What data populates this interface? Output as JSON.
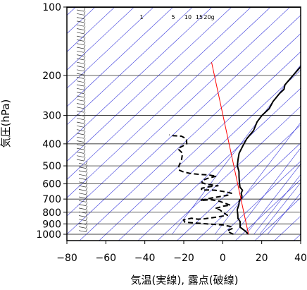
{
  "chart_data": {
    "type": "line",
    "title": "",
    "xlabel": "気温(実線), 露点(破線)",
    "ylabel": "気圧(hPa)",
    "x_axis": {
      "min": -80,
      "max": 40,
      "ticks": [
        -80,
        -60,
        -40,
        -20,
        0,
        20,
        40
      ],
      "tick_labels": [
        "−80",
        "−60",
        "−40",
        "−20",
        "0",
        "20",
        "40"
      ]
    },
    "y_axis": {
      "scale": "log",
      "reversed": true,
      "min": 100,
      "max": 1050,
      "ticks": [
        100,
        200,
        300,
        400,
        500,
        600,
        700,
        800,
        900,
        1000
      ],
      "tick_labels": [
        "100",
        "200",
        "300",
        "400",
        "500",
        "600",
        "700",
        "800",
        "900",
        "1000"
      ]
    },
    "mixing_ratio_labels": [
      "1",
      "5",
      "10",
      "15",
      "20g"
    ],
    "series": [
      {
        "role": "temperature",
        "style": "solid",
        "color": "#000000",
        "points": [
          [
            13.2,
            1000
          ],
          [
            10,
            970
          ],
          [
            5,
            930
          ],
          [
            2,
            880
          ],
          [
            -1,
            850
          ],
          [
            -3,
            820
          ],
          [
            -6,
            780
          ],
          [
            -8,
            740
          ],
          [
            -10,
            710
          ],
          [
            -10,
            695
          ],
          [
            -11,
            680
          ],
          [
            -13,
            660
          ],
          [
            -14,
            640
          ],
          [
            -17,
            620
          ],
          [
            -20,
            590
          ],
          [
            -23,
            560
          ],
          [
            -26,
            530
          ],
          [
            -30,
            500
          ],
          [
            -33,
            470
          ],
          [
            -36,
            440
          ],
          [
            -38,
            410
          ],
          [
            -40,
            380
          ],
          [
            -41,
            350
          ],
          [
            -44,
            320
          ],
          [
            -45,
            300
          ],
          [
            -45,
            280
          ],
          [
            -47,
            260
          ],
          [
            -48,
            240
          ],
          [
            -48,
            230
          ],
          [
            -50,
            220
          ],
          [
            -51,
            200
          ],
          [
            -52,
            180
          ],
          [
            -52,
            170
          ],
          [
            -51,
            160
          ],
          [
            -52,
            150
          ],
          [
            -54,
            140
          ],
          [
            -55,
            130
          ],
          [
            -56,
            120
          ],
          [
            -57,
            110
          ],
          [
            -59,
            103
          ],
          [
            -58,
            100
          ]
        ]
      },
      {
        "role": "dewpoint",
        "style": "dashed",
        "color": "#000000",
        "points": [
          [
            5.5,
            1000
          ],
          [
            3,
            985
          ],
          [
            0.5,
            965
          ],
          [
            2,
            940
          ],
          [
            0,
            925
          ],
          [
            -5,
            910
          ],
          [
            -10,
            905
          ],
          [
            -14,
            900
          ],
          [
            -18,
            895
          ],
          [
            -22,
            890
          ],
          [
            -26,
            885
          ],
          [
            -28,
            865
          ],
          [
            -25,
            850
          ],
          [
            -21,
            858
          ],
          [
            -18,
            855
          ],
          [
            -14,
            845
          ],
          [
            -8,
            825
          ],
          [
            -12,
            800
          ],
          [
            -15,
            780
          ],
          [
            -18,
            770
          ],
          [
            -15,
            752
          ],
          [
            -12,
            745
          ],
          [
            -16,
            730
          ],
          [
            -20,
            715
          ],
          [
            -25,
            705
          ],
          [
            -30,
            710
          ],
          [
            -25,
            690
          ],
          [
            -19,
            675
          ],
          [
            -18,
            660
          ],
          [
            -22,
            650
          ],
          [
            -28,
            640
          ],
          [
            -32,
            638
          ],
          [
            -35,
            640
          ],
          [
            -36,
            628
          ],
          [
            -33,
            618
          ],
          [
            -29,
            612
          ],
          [
            -36,
            602
          ],
          [
            -39,
            592
          ],
          [
            -40,
            580
          ],
          [
            -38,
            565
          ],
          [
            -35,
            555
          ],
          [
            -40,
            548
          ],
          [
            -45,
            545
          ],
          [
            -50,
            540
          ],
          [
            -55,
            530
          ],
          [
            -58,
            520
          ],
          [
            -60,
            500
          ],
          [
            -62,
            470
          ],
          [
            -65,
            440
          ],
          [
            -70,
            420
          ],
          [
            -68,
            400
          ],
          [
            -71,
            380
          ],
          [
            -75,
            370
          ],
          [
            -80,
            368
          ],
          [
            -82,
            365
          ]
        ]
      },
      {
        "role": "parcel",
        "style": "solid",
        "color": "#ff0000",
        "points": [
          [
            13.2,
            1000
          ],
          [
            -100,
            175
          ]
        ]
      }
    ]
  }
}
